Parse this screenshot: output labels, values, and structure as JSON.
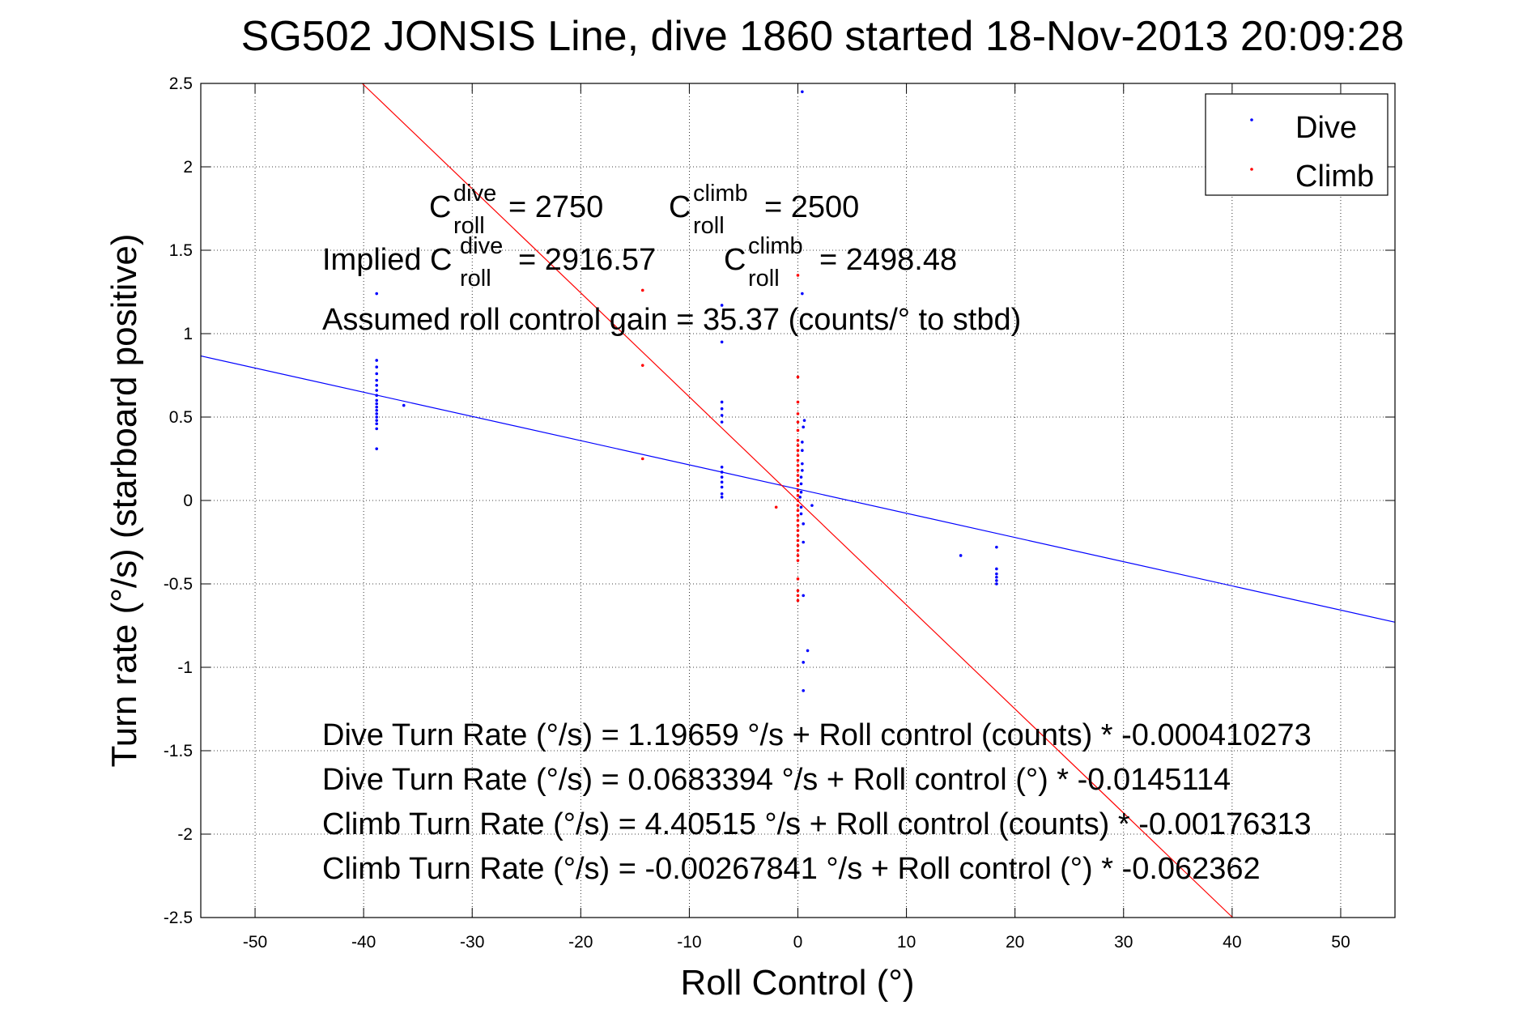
{
  "chart_data": {
    "type": "scatter",
    "title": "SG502 JONSIS Line, dive 1860 started 18-Nov-2013 20:09:28",
    "xlabel": "Roll Control (°)",
    "ylabel": "Turn rate (°/s) (starboard positive)",
    "xlim": [
      -55,
      55
    ],
    "ylim": [
      -2.5,
      2.5
    ],
    "xticks": [
      -50,
      -40,
      -30,
      -20,
      -10,
      0,
      10,
      20,
      30,
      40,
      50
    ],
    "yticks": [
      -2.5,
      -2,
      -1.5,
      -1,
      -0.5,
      0,
      0.5,
      1,
      1.5,
      2,
      2.5
    ],
    "xtick_labels": [
      "-50",
      "-40",
      "-30",
      "-20",
      "-10",
      "0",
      "10",
      "20",
      "30",
      "40",
      "50"
    ],
    "ytick_labels": [
      "-2.5",
      "-2",
      "-1.5",
      "-1",
      "-0.5",
      "0",
      "0.5",
      "1",
      "1.5",
      "2",
      "2.5"
    ],
    "grid": true,
    "legend_position": "top-right",
    "series": [
      {
        "name": "Dive",
        "color": "#0000ff",
        "marker": "point",
        "points": [
          [
            -38.8,
            1.24
          ],
          [
            -38.8,
            0.84
          ],
          [
            -38.8,
            0.8
          ],
          [
            -38.8,
            0.76
          ],
          [
            -38.8,
            0.72
          ],
          [
            -38.8,
            0.69
          ],
          [
            -38.8,
            0.66
          ],
          [
            -38.8,
            0.63
          ],
          [
            -38.8,
            0.6
          ],
          [
            -38.8,
            0.58
          ],
          [
            -38.8,
            0.56
          ],
          [
            -38.8,
            0.54
          ],
          [
            -38.8,
            0.52
          ],
          [
            -38.8,
            0.5
          ],
          [
            -38.8,
            0.48
          ],
          [
            -38.8,
            0.46
          ],
          [
            -38.8,
            0.43
          ],
          [
            -38.8,
            0.31
          ],
          [
            -36.3,
            0.57
          ],
          [
            -7,
            1.17
          ],
          [
            -7,
            0.95
          ],
          [
            -7,
            0.59
          ],
          [
            -7,
            0.55
          ],
          [
            -7,
            0.51
          ],
          [
            -7,
            0.47
          ],
          [
            -7,
            0.2
          ],
          [
            -7,
            0.17
          ],
          [
            -7,
            0.14
          ],
          [
            -7,
            0.11
          ],
          [
            -7,
            0.08
          ],
          [
            -7,
            0.04
          ],
          [
            -7,
            0.02
          ],
          [
            0.4,
            2.45
          ],
          [
            0.4,
            1.24
          ],
          [
            0.6,
            0.48
          ],
          [
            0.5,
            0.44
          ],
          [
            0.4,
            0.35
          ],
          [
            0.4,
            0.3
          ],
          [
            0.4,
            0.22
          ],
          [
            0.4,
            0.18
          ],
          [
            0.3,
            0.14
          ],
          [
            0.3,
            0.1
          ],
          [
            0.3,
            0.05
          ],
          [
            0.2,
            0.02
          ],
          [
            0.3,
            -0.04
          ],
          [
            0.3,
            -0.08
          ],
          [
            0.5,
            -0.14
          ],
          [
            0.5,
            -0.25
          ],
          [
            0.5,
            -0.57
          ],
          [
            0.9,
            -0.9
          ],
          [
            0.5,
            -0.97
          ],
          [
            0.5,
            -1.14
          ],
          [
            1.3,
            -0.03
          ],
          [
            15,
            -0.33
          ],
          [
            18.3,
            -0.28
          ],
          [
            18.3,
            -0.41
          ],
          [
            18.3,
            -0.44
          ],
          [
            18.3,
            -0.46
          ],
          [
            18.3,
            -0.48
          ],
          [
            18.3,
            -0.5
          ]
        ]
      },
      {
        "name": "Climb",
        "color": "#ff0000",
        "marker": "point",
        "points": [
          [
            -14.3,
            1.26
          ],
          [
            -14.3,
            0.81
          ],
          [
            -14.3,
            0.25
          ],
          [
            -2,
            -0.04
          ],
          [
            0,
            1.35
          ],
          [
            0,
            0.74
          ],
          [
            0,
            0.59
          ],
          [
            0,
            0.52
          ],
          [
            0,
            0.47
          ],
          [
            0,
            0.42
          ],
          [
            0,
            0.36
          ],
          [
            0,
            0.33
          ],
          [
            0,
            0.3
          ],
          [
            0,
            0.27
          ],
          [
            0,
            0.24
          ],
          [
            0,
            0.21
          ],
          [
            0,
            0.18
          ],
          [
            0,
            0.15
          ],
          [
            0,
            0.12
          ],
          [
            0,
            0.09
          ],
          [
            0,
            0.06
          ],
          [
            0,
            0.03
          ],
          [
            0,
            0.0
          ],
          [
            0,
            -0.03
          ],
          [
            0,
            -0.06
          ],
          [
            0,
            -0.09
          ],
          [
            0,
            -0.12
          ],
          [
            0,
            -0.15
          ],
          [
            0,
            -0.18
          ],
          [
            0,
            -0.21
          ],
          [
            0,
            -0.24
          ],
          [
            0,
            -0.27
          ],
          [
            0,
            -0.3
          ],
          [
            0,
            -0.33
          ],
          [
            0,
            -0.36
          ],
          [
            0,
            -0.47
          ],
          [
            0,
            -0.54
          ],
          [
            0,
            -0.57
          ],
          [
            0,
            -0.6
          ]
        ]
      }
    ],
    "fit_lines": [
      {
        "series": "Dive",
        "color": "#0000ff",
        "intercept": 0.0683394,
        "slope": -0.0145114
      },
      {
        "series": "Climb",
        "color": "#ff0000",
        "intercept": -0.00267841,
        "slope": -0.062362
      }
    ],
    "annotations": {
      "dive_c": {
        "C": "C",
        "sup": "dive",
        "sub": "roll",
        "rest": "= 2750"
      },
      "climb_c": {
        "C": "C",
        "sup": "climb",
        "sub": "roll",
        "rest": "= 2500"
      },
      "implied_prefix": "Implied C",
      "implied_dive": {
        "sup": "dive",
        "sub": "roll",
        "rest": "= 2916.57"
      },
      "implied_climb": {
        "C": "C",
        "sup": "climb",
        "sub": "roll",
        "rest": "= 2498.48"
      },
      "gain": "Assumed roll control gain = 35.37 (counts/° to stbd)",
      "equations": [
        "Dive Turn Rate (°/s) = 1.19659 °/s + Roll control (counts) * -0.000410273",
        "Dive Turn Rate (°/s) = 0.0683394 °/s + Roll control (°) * -0.0145114",
        "Climb Turn Rate (°/s) = 4.40515 °/s + Roll control (counts) * -0.00176313",
        "Climb Turn Rate (°/s) = -0.00267841 °/s + Roll control (°) * -0.062362"
      ]
    }
  }
}
